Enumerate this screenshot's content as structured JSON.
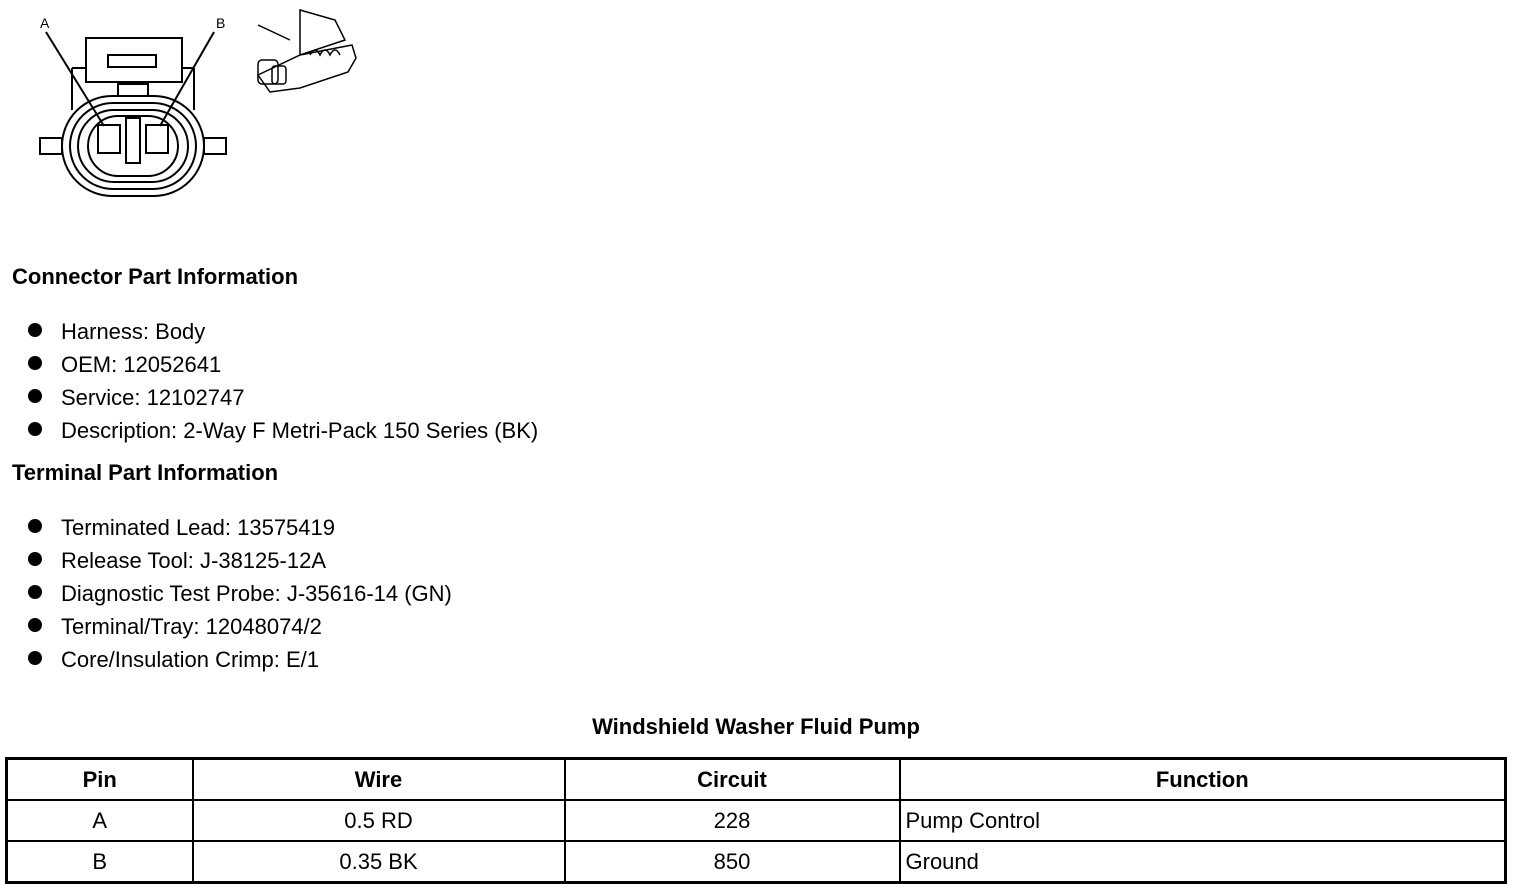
{
  "diagram": {
    "pin_labels": [
      "A",
      "B"
    ]
  },
  "connector_info": {
    "heading": "Connector Part Information",
    "items": [
      "Harness: Body",
      "OEM: 12052641",
      "Service: 12102747",
      "Description: 2-Way F Metri-Pack 150 Series (BK)"
    ]
  },
  "terminal_info": {
    "heading": "Terminal Part Information",
    "items": [
      "Terminated Lead: 13575419",
      "Release Tool: J-38125-12A",
      "Diagnostic Test Probe: J-35616-14 (GN)",
      "Terminal/Tray: 12048074/2",
      "Core/Insulation Crimp: E/1"
    ]
  },
  "table": {
    "title": "Windshield Washer Fluid Pump",
    "headers": [
      "Pin",
      "Wire",
      "Circuit",
      "Function"
    ],
    "rows": [
      [
        "A",
        "0.5 RD",
        "228",
        "Pump Control"
      ],
      [
        "B",
        "0.35 BK",
        "850",
        "Ground"
      ]
    ]
  }
}
